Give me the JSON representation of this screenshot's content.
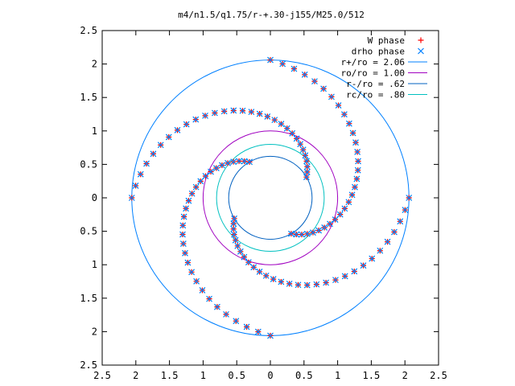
{
  "chart_data": {
    "type": "scatter",
    "title": "m4/n1.5/q1.75/r-+.30-j155/M25.0/512",
    "xlabel": "",
    "ylabel": "",
    "xlim": [
      -2.5,
      2.5
    ],
    "ylim": [
      -2.5,
      2.5
    ],
    "x_tick_values": [
      -2.5,
      -2,
      -1.5,
      -1,
      -0.5,
      0,
      0.5,
      1,
      1.5,
      2,
      2.5
    ],
    "x_tick_labels": [
      "2.5",
      "2",
      "1.5",
      "1",
      "0.5",
      "0",
      "0.5",
      "1",
      "1.5",
      "2",
      "2.5"
    ],
    "y_tick_values": [
      2.5,
      2,
      1.5,
      1,
      0.5,
      0,
      -0.5,
      -1,
      -1.5,
      -2,
      -2.5
    ],
    "y_tick_labels": [
      "2.5",
      "2",
      "1.5",
      "1",
      "0.5",
      "0",
      "0.5",
      "1",
      "1.5",
      "2",
      "2.5"
    ],
    "grid": false,
    "legend_position": "top-right",
    "series": [
      {
        "name": "W phase",
        "kind": "points",
        "marker": "plus",
        "color": "#ff0000",
        "spiral": {
          "arms": 4,
          "r_start": 0.62,
          "r_end": 2.06,
          "turn_deg": 150,
          "points_per_arm": 30
        }
      },
      {
        "name": "drho phase",
        "kind": "points",
        "marker": "cross",
        "color": "#0080ff",
        "spiral": {
          "arms": 4,
          "r_start": 0.62,
          "r_end": 2.06,
          "turn_deg": 150,
          "points_per_arm": 30
        }
      },
      {
        "name": "r+/ro = 2.06",
        "kind": "circle",
        "radius": 2.06,
        "color": "#0080ff"
      },
      {
        "name": "ro/ro = 1.00",
        "kind": "circle",
        "radius": 1.0,
        "color": "#a000c0"
      },
      {
        "name": "r-/ro = .62",
        "kind": "circle",
        "radius": 0.62,
        "color": "#0060c0"
      },
      {
        "name": "rc/ro = .80",
        "kind": "circle",
        "radius": 0.8,
        "color": "#00c0c0"
      }
    ]
  }
}
